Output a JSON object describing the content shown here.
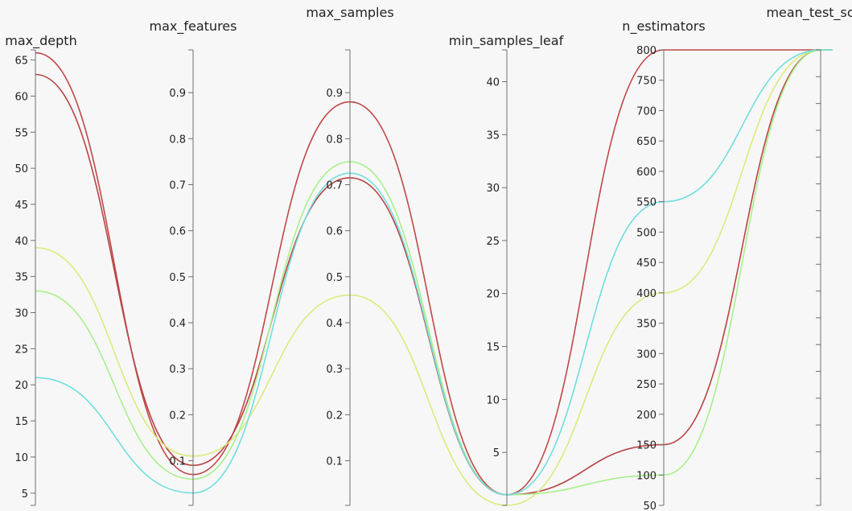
{
  "chart_data": {
    "type": "parallel_coordinates",
    "title": "",
    "colors": {
      "background": "#f7f7f7",
      "axis": "#6f6f6f",
      "palette": [
        "#c04848",
        "#b84444",
        "#dcea7e",
        "#a8f08c",
        "#72dede"
      ]
    },
    "dimensions": [
      {
        "name": "max_depth",
        "label": "max_depth",
        "range": [
          3.3,
          66.4
        ],
        "ticks": [
          5,
          10,
          15,
          20,
          25,
          30,
          35,
          40,
          45,
          50,
          55,
          60,
          65
        ],
        "tick_labels": [
          "5",
          "10",
          "15",
          "20",
          "25",
          "30",
          "35",
          "40",
          "45",
          "50",
          "55",
          "60",
          "65"
        ]
      },
      {
        "name": "max_features",
        "label": "max_features",
        "range": [
          0.003,
          0.993
        ],
        "ticks": [
          0.1,
          0.2,
          0.3,
          0.4,
          0.5,
          0.6,
          0.7,
          0.8,
          0.9
        ],
        "tick_labels": [
          "0.1",
          "0.2",
          "0.3",
          "0.4",
          "0.5",
          "0.6",
          "0.7",
          "0.8",
          "0.9"
        ]
      },
      {
        "name": "max_samples",
        "label": "max_samples",
        "range": [
          0.003,
          0.993
        ],
        "ticks": [
          0.1,
          0.2,
          0.3,
          0.4,
          0.5,
          0.6,
          0.7,
          0.8,
          0.9
        ],
        "tick_labels": [
          "0.1",
          "0.2",
          "0.3",
          "0.4",
          "0.5",
          "0.6",
          "0.7",
          "0.8",
          "0.9"
        ]
      },
      {
        "name": "min_samples_leaf",
        "label": "min_samples_leaf",
        "range": [
          0.0,
          43.0
        ],
        "ticks": [
          5,
          10,
          15,
          20,
          25,
          30,
          35,
          40
        ],
        "tick_labels": [
          "5",
          "10",
          "15",
          "20",
          "25",
          "30",
          "35",
          "40"
        ]
      },
      {
        "name": "n_estimators",
        "label": "n_estimators",
        "range": [
          50,
          800
        ],
        "ticks": [
          50,
          100,
          150,
          200,
          250,
          300,
          350,
          400,
          450,
          500,
          550,
          600,
          650,
          700,
          750,
          800
        ],
        "tick_labels": [
          "50",
          "100",
          "150",
          "200",
          "250",
          "300",
          "350",
          "400",
          "450",
          "500",
          "550",
          "600",
          "650",
          "700",
          "750",
          "800"
        ]
      },
      {
        "name": "mean_test_score",
        "label": "mean_test_score",
        "range": [
          0,
          17
        ],
        "ticks": [
          0,
          1,
          2,
          3,
          4,
          5,
          6,
          7,
          8,
          9,
          10,
          11,
          12,
          13,
          14,
          15,
          16,
          17
        ],
        "tick_labels": []
      }
    ],
    "series": [
      {
        "values": [
          66,
          0.07,
          0.88,
          1,
          800,
          17
        ],
        "color": "#c04848"
      },
      {
        "values": [
          63,
          0.09,
          0.715,
          1,
          150,
          17
        ],
        "color": "#b84444"
      },
      {
        "values": [
          39,
          0.11,
          0.46,
          0,
          400,
          17
        ],
        "color": "#dcea7e"
      },
      {
        "values": [
          33,
          0.06,
          0.75,
          1,
          100,
          17
        ],
        "color": "#a8f08c"
      },
      {
        "values": [
          21,
          0.03,
          0.725,
          1,
          550,
          17
        ],
        "color": "#72dede"
      }
    ]
  }
}
